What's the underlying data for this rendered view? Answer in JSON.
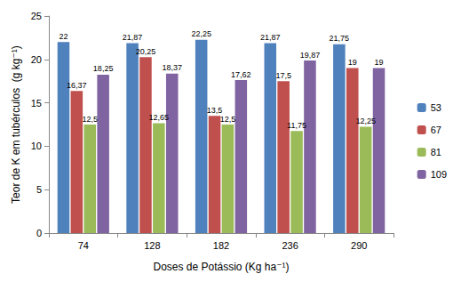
{
  "chart_data": {
    "type": "bar",
    "x_label": "Doses de Potássio (Kg ha⁻¹)",
    "y_label": "Teor de K em tubérculos  (g kg⁻¹)",
    "categories": [
      "74",
      "128",
      "182",
      "236",
      "290"
    ],
    "series": [
      {
        "name": "53",
        "color": "#4f81bd",
        "values": [
          22,
          21.87,
          22.25,
          21.87,
          21.75
        ],
        "value_labels": [
          "22",
          "21,87",
          "22,25",
          "21,87",
          "21,75"
        ]
      },
      {
        "name": "67",
        "color": "#c0504d",
        "values": [
          16.37,
          20.25,
          13.5,
          17.5,
          19
        ],
        "value_labels": [
          "16,37",
          "20,25",
          "13,5",
          "17,5",
          "19"
        ]
      },
      {
        "name": "81",
        "color": "#9bbb59",
        "values": [
          12.5,
          12.65,
          12.5,
          11.75,
          12.25
        ],
        "value_labels": [
          "12,5",
          "12,65",
          "12,5",
          "11,75",
          "12,25"
        ]
      },
      {
        "name": "109",
        "color": "#8064a2",
        "values": [
          18.25,
          18.37,
          17.62,
          19.87,
          19
        ],
        "value_labels": [
          "18,25",
          "18,37",
          "17,62",
          "19,87",
          "19"
        ]
      }
    ],
    "ylim": [
      0,
      25
    ],
    "yticks": [
      0,
      5,
      10,
      15,
      20,
      25
    ],
    "grid": false,
    "legend": "right",
    "data_labels": true
  }
}
